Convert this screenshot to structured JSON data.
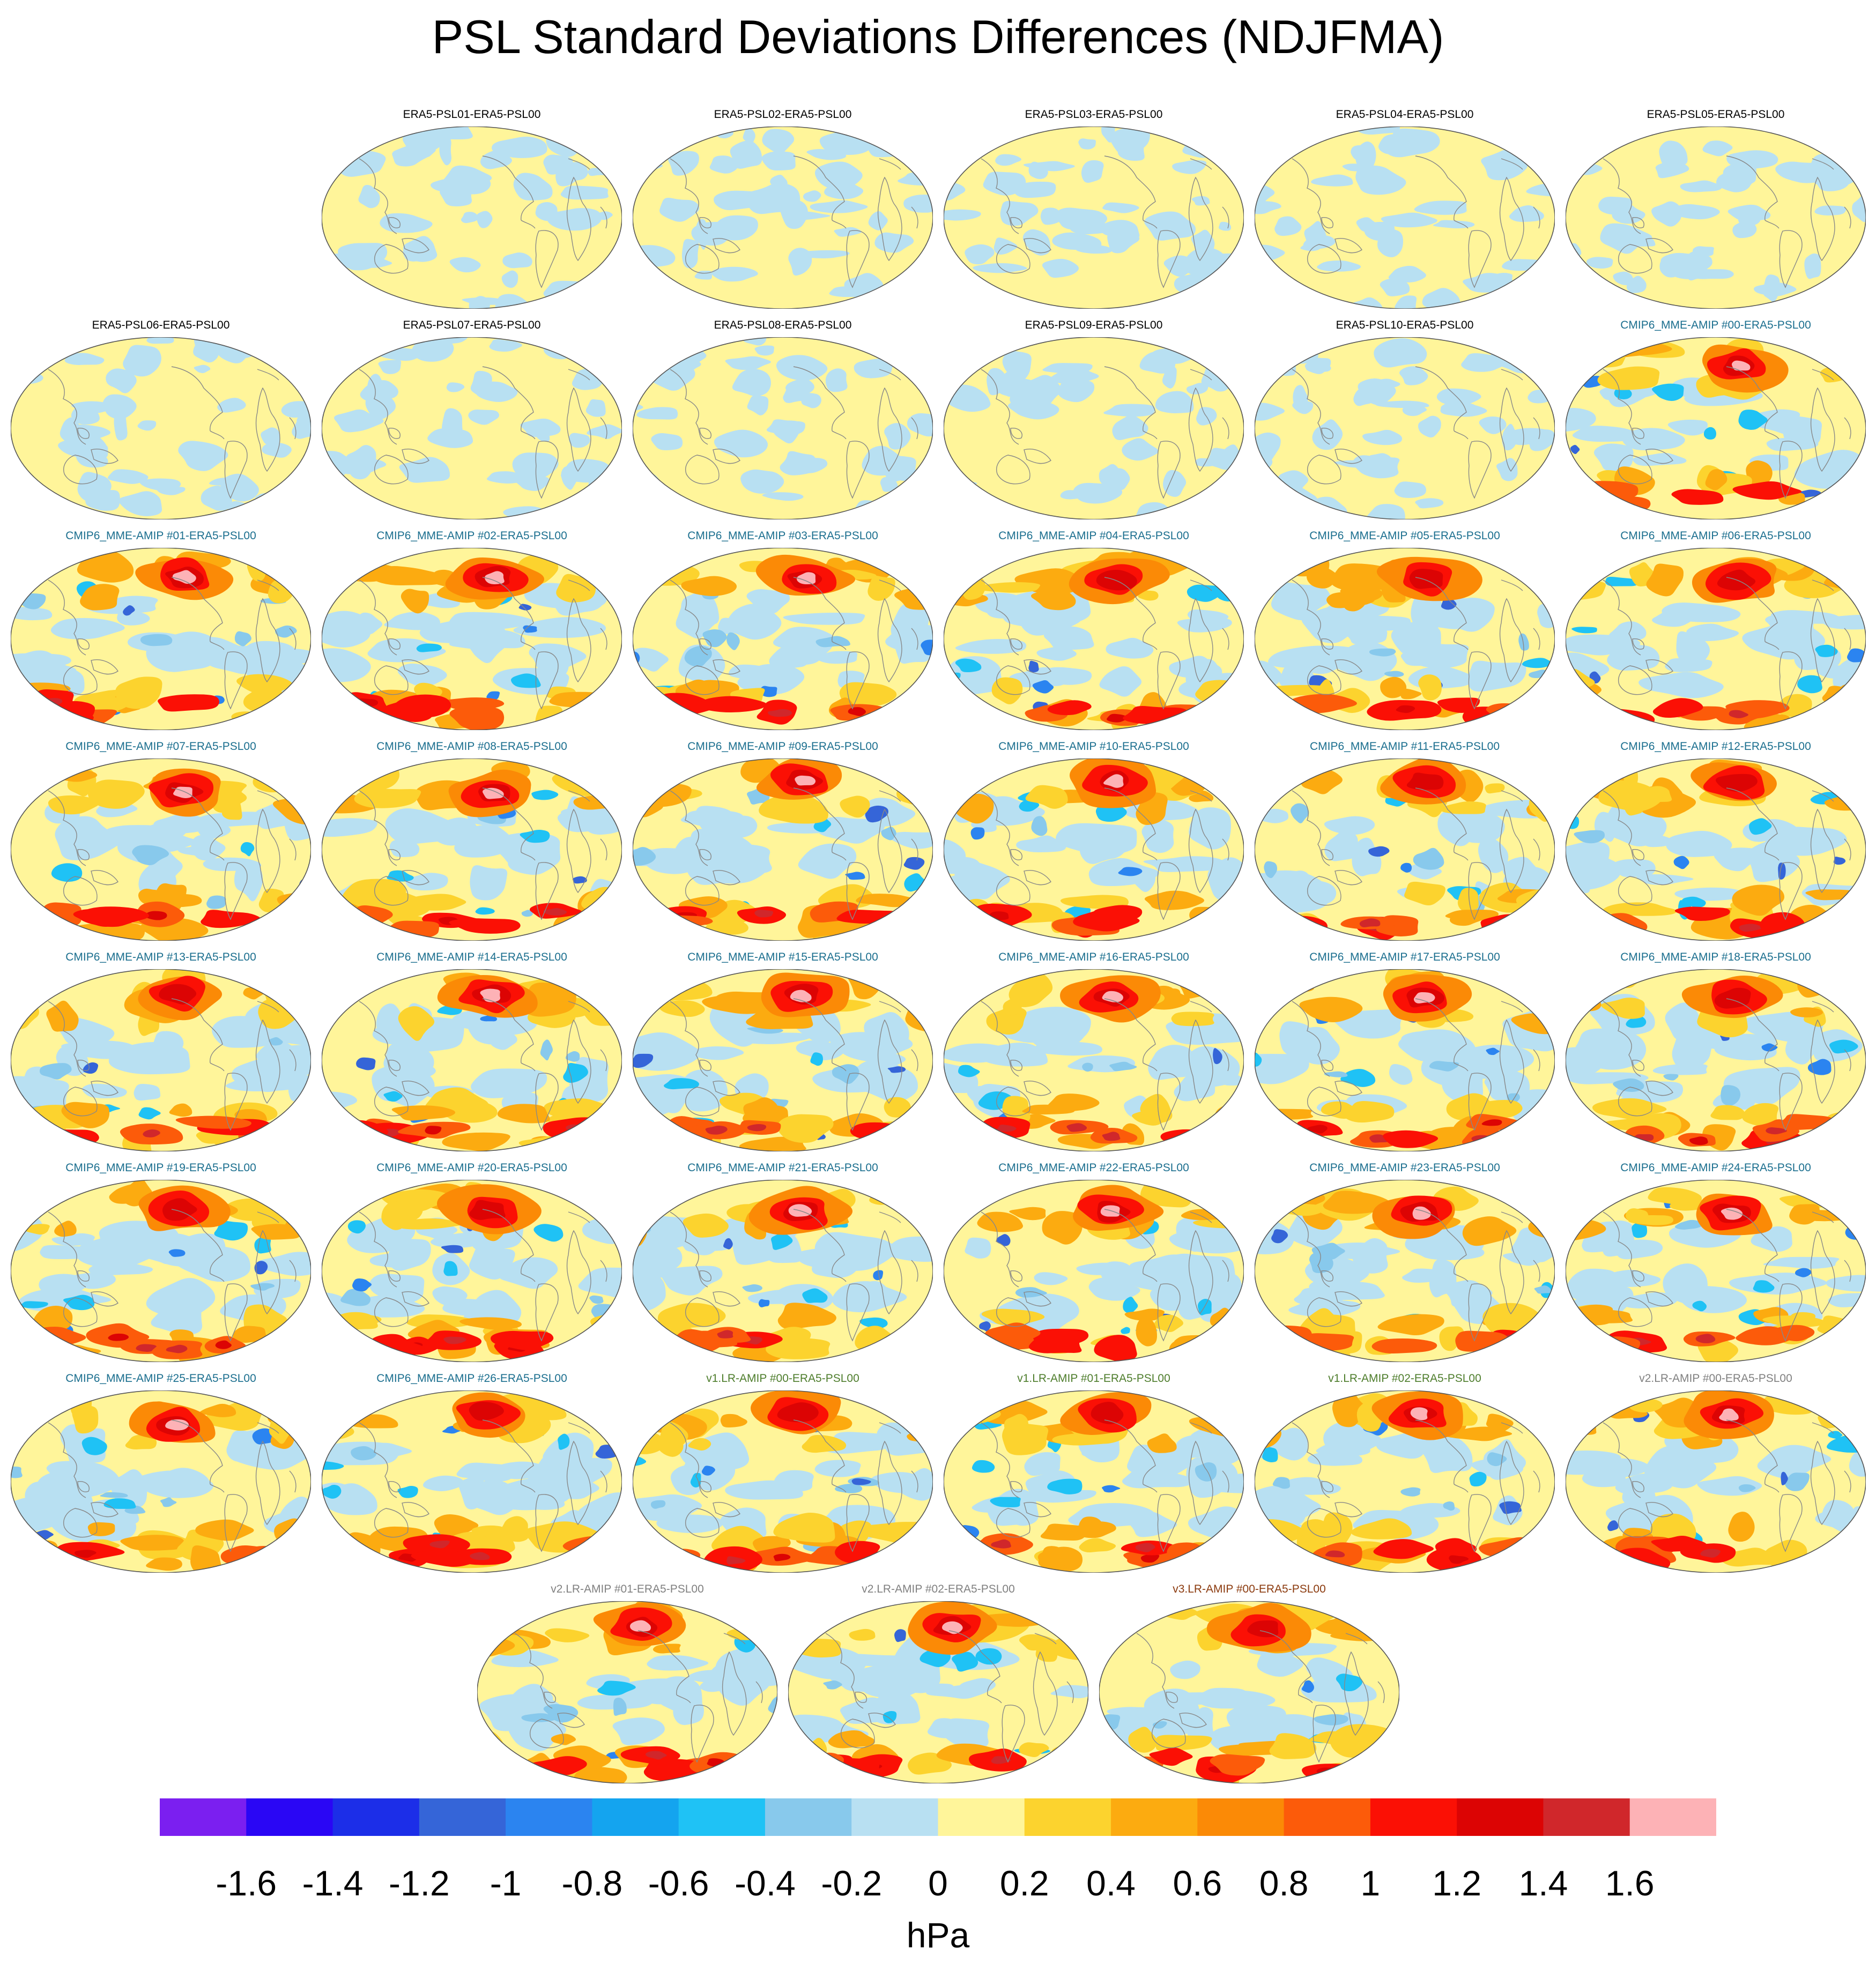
{
  "title": "PSL Standard Deviations Differences (NDJFMA)",
  "colors": {
    "era5_label": "#000000",
    "cmip6_label": "#1a6e8e",
    "v1_label": "#4e7d2c",
    "v2_label": "#808080",
    "v3_label": "#8b3a0e",
    "coastline": "#888888",
    "map_outline": "#555555"
  },
  "panels": [
    {
      "label": "ERA5-PSL01-ERA5-PSL00",
      "group": "era5"
    },
    {
      "label": "ERA5-PSL02-ERA5-PSL00",
      "group": "era5"
    },
    {
      "label": "ERA5-PSL03-ERA5-PSL00",
      "group": "era5"
    },
    {
      "label": "ERA5-PSL04-ERA5-PSL00",
      "group": "era5"
    },
    {
      "label": "ERA5-PSL05-ERA5-PSL00",
      "group": "era5"
    },
    {
      "label": "ERA5-PSL06-ERA5-PSL00",
      "group": "era5"
    },
    {
      "label": "ERA5-PSL07-ERA5-PSL00",
      "group": "era5"
    },
    {
      "label": "ERA5-PSL08-ERA5-PSL00",
      "group": "era5"
    },
    {
      "label": "ERA5-PSL09-ERA5-PSL00",
      "group": "era5"
    },
    {
      "label": "ERA5-PSL10-ERA5-PSL00",
      "group": "era5"
    },
    {
      "label": "CMIP6_MME-AMIP  #00-ERA5-PSL00",
      "group": "cmip6"
    },
    {
      "label": "CMIP6_MME-AMIP  #01-ERA5-PSL00",
      "group": "cmip6"
    },
    {
      "label": "CMIP6_MME-AMIP  #02-ERA5-PSL00",
      "group": "cmip6"
    },
    {
      "label": "CMIP6_MME-AMIP  #03-ERA5-PSL00",
      "group": "cmip6"
    },
    {
      "label": "CMIP6_MME-AMIP  #04-ERA5-PSL00",
      "group": "cmip6"
    },
    {
      "label": "CMIP6_MME-AMIP  #05-ERA5-PSL00",
      "group": "cmip6"
    },
    {
      "label": "CMIP6_MME-AMIP  #06-ERA5-PSL00",
      "group": "cmip6"
    },
    {
      "label": "CMIP6_MME-AMIP  #07-ERA5-PSL00",
      "group": "cmip6"
    },
    {
      "label": "CMIP6_MME-AMIP  #08-ERA5-PSL00",
      "group": "cmip6"
    },
    {
      "label": "CMIP6_MME-AMIP  #09-ERA5-PSL00",
      "group": "cmip6"
    },
    {
      "label": "CMIP6_MME-AMIP  #10-ERA5-PSL00",
      "group": "cmip6"
    },
    {
      "label": "CMIP6_MME-AMIP  #11-ERA5-PSL00",
      "group": "cmip6"
    },
    {
      "label": "CMIP6_MME-AMIP  #12-ERA5-PSL00",
      "group": "cmip6"
    },
    {
      "label": "CMIP6_MME-AMIP  #13-ERA5-PSL00",
      "group": "cmip6"
    },
    {
      "label": "CMIP6_MME-AMIP  #14-ERA5-PSL00",
      "group": "cmip6"
    },
    {
      "label": "CMIP6_MME-AMIP  #15-ERA5-PSL00",
      "group": "cmip6"
    },
    {
      "label": "CMIP6_MME-AMIP  #16-ERA5-PSL00",
      "group": "cmip6"
    },
    {
      "label": "CMIP6_MME-AMIP  #17-ERA5-PSL00",
      "group": "cmip6"
    },
    {
      "label": "CMIP6_MME-AMIP  #18-ERA5-PSL00",
      "group": "cmip6"
    },
    {
      "label": "CMIP6_MME-AMIP  #19-ERA5-PSL00",
      "group": "cmip6"
    },
    {
      "label": "CMIP6_MME-AMIP  #20-ERA5-PSL00",
      "group": "cmip6"
    },
    {
      "label": "CMIP6_MME-AMIP  #21-ERA5-PSL00",
      "group": "cmip6"
    },
    {
      "label": "CMIP6_MME-AMIP  #22-ERA5-PSL00",
      "group": "cmip6"
    },
    {
      "label": "CMIP6_MME-AMIP  #23-ERA5-PSL00",
      "group": "cmip6"
    },
    {
      "label": "CMIP6_MME-AMIP  #24-ERA5-PSL00",
      "group": "cmip6"
    },
    {
      "label": "CMIP6_MME-AMIP  #25-ERA5-PSL00",
      "group": "cmip6"
    },
    {
      "label": "CMIP6_MME-AMIP  #26-ERA5-PSL00",
      "group": "cmip6"
    },
    {
      "label": "v1.LR-AMIP  #00-ERA5-PSL00",
      "group": "v1"
    },
    {
      "label": "v1.LR-AMIP  #01-ERA5-PSL00",
      "group": "v1"
    },
    {
      "label": "v1.LR-AMIP  #02-ERA5-PSL00",
      "group": "v1"
    },
    {
      "label": "v2.LR-AMIP  #00-ERA5-PSL00",
      "group": "v2"
    },
    {
      "label": "v2.LR-AMIP  #01-ERA5-PSL00",
      "group": "v2"
    },
    {
      "label": "v2.LR-AMIP  #02-ERA5-PSL00",
      "group": "v2"
    },
    {
      "label": "v3.LR-AMIP  #00-ERA5-PSL00",
      "group": "v3"
    }
  ],
  "chart_data": {
    "type": "heatmap",
    "title": "PSL Standard Deviations Differences (NDJFMA)",
    "projection": "global map (Robinson-like), 44 panels",
    "colorbar": {
      "units": "hPa",
      "tick_labels": [
        "-1.6",
        "-1.4",
        "-1.2",
        "-1",
        "-0.8",
        "-0.6",
        "-0.4",
        "-0.2",
        "0",
        "0.2",
        "0.4",
        "0.6",
        "0.8",
        "1",
        "1.2",
        "1.4",
        "1.6"
      ],
      "levels": [
        -1.6,
        -1.4,
        -1.2,
        -1,
        -0.8,
        -0.6,
        -0.4,
        -0.2,
        0,
        0.2,
        0.4,
        0.6,
        0.8,
        1,
        1.2,
        1.4,
        1.6
      ],
      "colors": [
        "#7b1ff0",
        "#2a06f5",
        "#1c2ee8",
        "#3565d8",
        "#2b84f0",
        "#14a4ef",
        "#1fc2f5",
        "#88c9ec",
        "#b8e0f2",
        "#fff59a",
        "#fcd32e",
        "#fcab10",
        "#fb8a06",
        "#fc5b0a",
        "#fb1005",
        "#dc0404",
        "#d0272b",
        "#fdb2b6"
      ]
    }
  }
}
